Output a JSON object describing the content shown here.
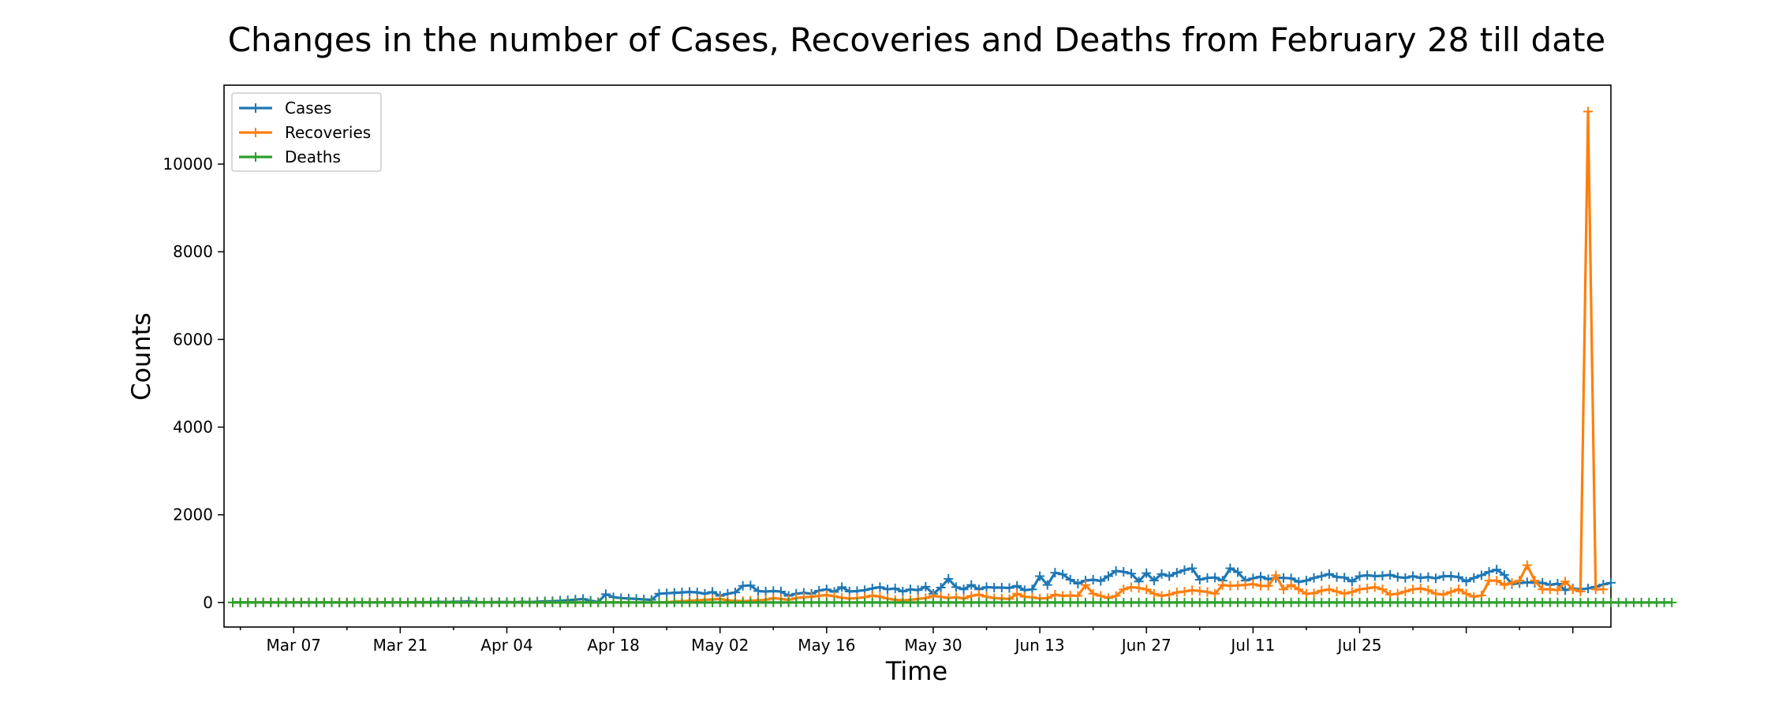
{
  "chart_data": {
    "type": "line",
    "title": "Changes in the number of Cases, Recoveries and Deaths from February 28 till date",
    "xlabel": "Time",
    "ylabel": "Counts",
    "x_start": "2020-02-28",
    "x_ticks": [
      "Mar 07",
      "Mar 21",
      "Apr 04",
      "Apr 18",
      "May 02",
      "May 16",
      "May 30",
      "Jun 13",
      "Jun 27",
      "Jul 11",
      "Jul 25"
    ],
    "ylim": [
      -560,
      11800
    ],
    "y_ticks": [
      0,
      2000,
      4000,
      6000,
      8000,
      10000
    ],
    "grid": false,
    "legend_position": "top-left",
    "markers": "plus",
    "series": [
      {
        "name": "Cases",
        "color": "#1f77b4",
        "values": [
          1,
          0,
          0,
          1,
          0,
          0,
          0,
          0,
          0,
          0,
          0,
          0,
          0,
          0,
          0,
          0,
          0,
          0,
          0,
          1,
          3,
          2,
          3,
          2,
          8,
          5,
          10,
          15,
          8,
          15,
          20,
          25,
          10,
          5,
          8,
          10,
          12,
          5,
          15,
          10,
          20,
          25,
          30,
          40,
          50,
          65,
          80,
          40,
          10,
          190,
          120,
          100,
          90,
          80,
          70,
          60,
          200,
          210,
          220,
          230,
          240,
          230,
          200,
          240,
          150,
          200,
          230,
          380,
          390,
          260,
          250,
          260,
          250,
          150,
          200,
          220,
          200,
          270,
          300,
          240,
          350,
          250,
          260,
          280,
          320,
          350,
          300,
          320,
          250,
          300,
          280,
          360,
          200,
          340,
          540,
          350,
          300,
          400,
          300,
          350,
          340,
          340,
          330,
          380,
          280,
          300,
          600,
          400,
          680,
          640,
          520,
          430,
          500,
          520,
          490,
          600,
          720,
          700,
          660,
          480,
          670,
          500,
          650,
          600,
          680,
          740,
          780,
          520,
          560,
          570,
          500,
          780,
          690,
          500,
          550,
          590,
          530,
          560,
          560,
          550,
          470,
          500,
          560,
          600,
          650,
          580,
          570,
          480,
          600,
          620,
          600,
          610,
          630,
          580,
          560,
          600,
          560,
          580,
          550,
          600,
          600,
          580,
          480,
          560,
          620,
          700,
          750,
          630,
          420,
          440,
          460,
          450,
          450,
          400,
          430,
          280,
          320,
          300,
          320,
          360,
          410,
          450
        ]
      },
      {
        "name": "Recoveries",
        "color": "#ff7f0e",
        "values": [
          0,
          0,
          0,
          0,
          0,
          0,
          0,
          0,
          0,
          0,
          0,
          0,
          0,
          0,
          0,
          0,
          0,
          0,
          0,
          0,
          0,
          0,
          0,
          0,
          0,
          0,
          0,
          0,
          0,
          0,
          0,
          0,
          0,
          0,
          0,
          0,
          0,
          0,
          0,
          0,
          0,
          0,
          0,
          0,
          0,
          0,
          0,
          0,
          0,
          0,
          0,
          0,
          0,
          0,
          0,
          0,
          0,
          10,
          20,
          30,
          40,
          50,
          60,
          70,
          80,
          50,
          40,
          30,
          40,
          50,
          60,
          100,
          80,
          60,
          100,
          120,
          130,
          150,
          170,
          140,
          110,
          90,
          100,
          120,
          160,
          130,
          90,
          60,
          50,
          60,
          80,
          100,
          150,
          130,
          100,
          120,
          90,
          150,
          180,
          130,
          100,
          90,
          80,
          200,
          130,
          120,
          90,
          100,
          180,
          150,
          160,
          150,
          400,
          200,
          150,
          100,
          150,
          300,
          350,
          330,
          300,
          200,
          150,
          180,
          230,
          250,
          280,
          260,
          240,
          200,
          400,
          380,
          390,
          400,
          420,
          380,
          380,
          620,
          300,
          400,
          300,
          200,
          210,
          270,
          300,
          250,
          200,
          240,
          300,
          320,
          350,
          300,
          180,
          200,
          250,
          300,
          320,
          280,
          200,
          180,
          240,
          300,
          200,
          130,
          160,
          500,
          500,
          400,
          450,
          500,
          850,
          500,
          300,
          300,
          280,
          480,
          300,
          250,
          11200,
          300,
          300
        ]
      },
      {
        "name": "Deaths",
        "color": "#2ca02c",
        "values": [
          0,
          0,
          0,
          0,
          0,
          0,
          0,
          0,
          0,
          0,
          0,
          0,
          0,
          0,
          0,
          0,
          0,
          0,
          0,
          0,
          0,
          0,
          0,
          0,
          0,
          0,
          0,
          0,
          0,
          0,
          0,
          0,
          0,
          0,
          0,
          0,
          0,
          0,
          0,
          0,
          0,
          0,
          0,
          0,
          0,
          0,
          0,
          0,
          0,
          0,
          0,
          0,
          0,
          0,
          0,
          0,
          0,
          0,
          0,
          0,
          0,
          0,
          0,
          0,
          0,
          0,
          0,
          0,
          0,
          0,
          0,
          0,
          0,
          0,
          0,
          0,
          0,
          0,
          0,
          0,
          0,
          0,
          0,
          0,
          0,
          0,
          0,
          0,
          0,
          0,
          0,
          0,
          0,
          0,
          0,
          0,
          0,
          0,
          0,
          0,
          0,
          0,
          0,
          0,
          0,
          0,
          0,
          0,
          0,
          0,
          0,
          0,
          0,
          0,
          0,
          0,
          0,
          0,
          0,
          0,
          0,
          0,
          0,
          0,
          0,
          0,
          0,
          0,
          0,
          0,
          0,
          0,
          0,
          0,
          0,
          0,
          0,
          0,
          0,
          0,
          0,
          0,
          0,
          0,
          0,
          0,
          0,
          0,
          0,
          0,
          0,
          0,
          0,
          0,
          0,
          0,
          0,
          0,
          0,
          0,
          0,
          0,
          0,
          0,
          0,
          0,
          0,
          0,
          0,
          0,
          0,
          0,
          0,
          0,
          0,
          0,
          0,
          0,
          0,
          0,
          0,
          0,
          0,
          0,
          0,
          0,
          0,
          0,
          0,
          0
        ]
      }
    ]
  }
}
